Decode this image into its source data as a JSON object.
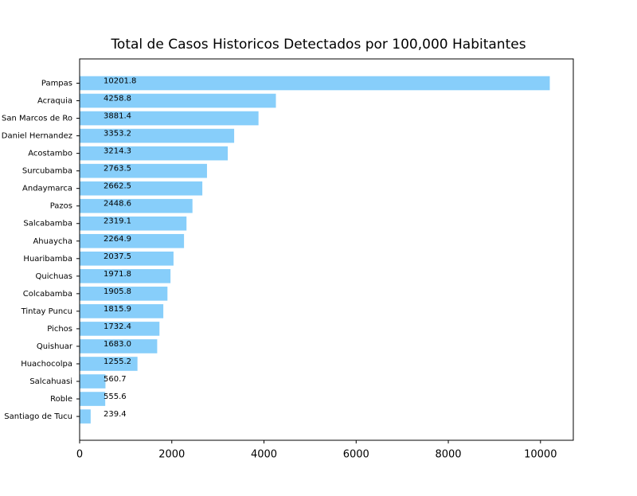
{
  "chart_data": {
    "type": "barh",
    "title": "Total de Casos Historicos Detectados por 100,000 Habitantes",
    "categories": [
      "Pampas",
      "Acraquia",
      "San Marcos de Ro",
      "Daniel Hernandez",
      "Acostambo",
      "Surcubamba",
      "Andaymarca",
      "Pazos",
      "Salcabamba",
      "Ahuaycha",
      "Huaribamba",
      "Quichuas",
      "Colcabamba",
      "Tintay Puncu",
      "Pichos",
      "Quishuar",
      "Huachocolpa",
      "Salcahuasi",
      "Roble",
      "Santiago de Tucu"
    ],
    "values": [
      10201.8,
      4258.8,
      3881.4,
      3353.2,
      3214.3,
      2763.5,
      2662.5,
      2448.6,
      2319.1,
      2264.9,
      2037.5,
      1971.8,
      1905.8,
      1815.9,
      1732.4,
      1683.0,
      1255.2,
      560.7,
      555.6,
      239.4
    ],
    "value_labels": [
      "10201.8",
      "4258.8",
      "3881.4",
      "3353.2",
      "3214.3",
      "2763.5",
      "2662.5",
      "2448.6",
      "2319.1",
      "2264.9",
      "2037.5",
      "1971.8",
      "1905.8",
      "1815.9",
      "1732.4",
      "1683.0",
      "1255.2",
      "560.7",
      "555.6",
      "239.4"
    ],
    "color": "#87cefa",
    "xlim": [
      0,
      10712
    ],
    "xticks": [
      0,
      2000,
      4000,
      6000,
      8000,
      10000
    ],
    "grid": false
  }
}
